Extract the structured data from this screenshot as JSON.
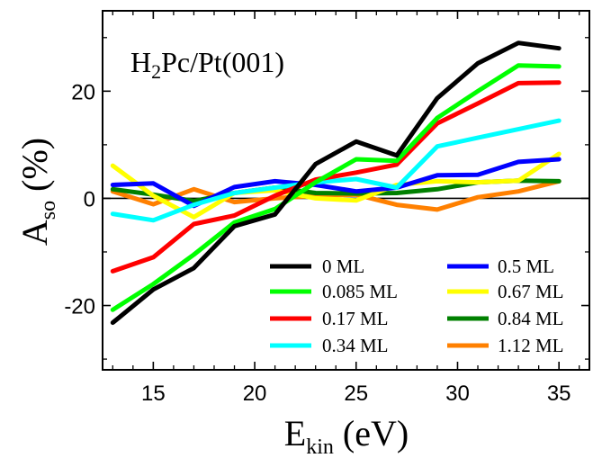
{
  "chart_data": {
    "type": "line",
    "annotation": {
      "main": "H",
      "sub": "2",
      "rest": "Pc/Pt(001)"
    },
    "xlabel": {
      "main": "E",
      "sub": "kin",
      "rest": " (eV)"
    },
    "ylabel": {
      "main": "A",
      "sub": "so",
      "rest": " (%)"
    },
    "xlim": [
      12.5,
      36.5
    ],
    "ylim": [
      -32,
      35
    ],
    "x_ticks": [
      15,
      20,
      25,
      30,
      35
    ],
    "y_ticks": [
      -20,
      0,
      20
    ],
    "x_tick_labels": [
      "15",
      "20",
      "25",
      "30",
      "35"
    ],
    "y_tick_labels": [
      "-20",
      "0",
      "20"
    ],
    "zero_line": true,
    "grid": false,
    "legend_placement": "bottom-right",
    "series": [
      {
        "name": "0 ML",
        "color": "#000000",
        "x": [
          13,
          15,
          17,
          19,
          21,
          23,
          25,
          27,
          29,
          31,
          33,
          35
        ],
        "y": [
          -23.2,
          -17,
          -13,
          -5.2,
          -3,
          6.4,
          10.6,
          8,
          18.7,
          25.2,
          29,
          28
        ]
      },
      {
        "name": "0.085 ML",
        "color": "#00ff00",
        "x": [
          13,
          15,
          17,
          19,
          21,
          23,
          25,
          27,
          29,
          31,
          33,
          35
        ],
        "y": [
          -20.8,
          -16,
          -10.5,
          -4.5,
          -2,
          3,
          7.3,
          7,
          15,
          20,
          24.8,
          24.6
        ]
      },
      {
        "name": "0.17 ML",
        "color": "#ff0000",
        "x": [
          13,
          15,
          17,
          19,
          21,
          23,
          25,
          27,
          29,
          31,
          33,
          35
        ],
        "y": [
          -13.6,
          -11,
          -4.8,
          -3.2,
          0.5,
          3.5,
          4.8,
          6.3,
          14,
          17.7,
          21.5,
          21.6
        ]
      },
      {
        "name": "0.34 ML",
        "color": "#00ffff",
        "x": [
          13,
          15,
          17,
          19,
          21,
          23,
          25,
          27,
          29,
          31,
          33,
          35
        ],
        "y": [
          -2.9,
          -4.1,
          -1.2,
          1,
          2,
          3,
          3.6,
          2,
          9.7,
          11.3,
          12.9,
          14.5
        ]
      },
      {
        "name": "0.5 ML",
        "color": "#0000ff",
        "x": [
          13,
          15,
          17,
          19,
          21,
          23,
          25,
          27,
          29,
          31,
          33,
          35
        ],
        "y": [
          2.5,
          2.8,
          -1.4,
          2.1,
          3.2,
          2.5,
          1.3,
          2,
          4.3,
          4.4,
          6.8,
          7.3
        ]
      },
      {
        "name": "0.67 ML",
        "color": "#ffff00",
        "x": [
          13,
          15,
          17,
          19,
          21,
          23,
          25,
          27,
          29,
          31,
          33,
          35
        ],
        "y": [
          6.1,
          0.5,
          -3.5,
          1,
          1.5,
          0,
          -0.4,
          2.5,
          3.2,
          3,
          3.3,
          8.3
        ]
      },
      {
        "name": "0.84 ML",
        "color": "#008000",
        "x": [
          13,
          15,
          17,
          19,
          21,
          23,
          25,
          27,
          29,
          31,
          33,
          35
        ],
        "y": [
          1.7,
          0.7,
          -0.5,
          1,
          2,
          1,
          0.9,
          1,
          1.7,
          3,
          3.3,
          3.2
        ]
      },
      {
        "name": "1.12 ML",
        "color": "#ff8000",
        "x": [
          13,
          15,
          17,
          19,
          21,
          23,
          25,
          27,
          29,
          31,
          33,
          35
        ],
        "y": [
          1.3,
          -1.1,
          1.7,
          -0.7,
          0,
          0.5,
          0.7,
          -1.2,
          -2.1,
          0.2,
          1.3,
          3.2
        ]
      }
    ]
  }
}
